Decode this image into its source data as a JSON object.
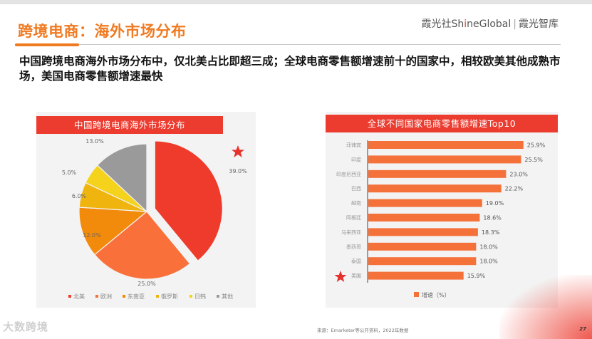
{
  "header": {
    "title": "跨境电商：海外市场分布",
    "brand_prefix": "霞光社",
    "brand_en_1": "Sh",
    "brand_en_i": "i",
    "brand_en_2": "neGlobal",
    "brand_sep": "|",
    "brand_suffix": "霞光智库"
  },
  "subtitle": "中国跨境电商海外市场分布中，仅北美占比即超三成；全球电商零售额增速前十的国家中，相较欧美其他成熟市场，美国电商零售额增速最快",
  "footer": {
    "source": "来源：Emarketer等公开资料，2022年数据",
    "page": "27",
    "watermark": "大数跨境"
  },
  "colors": {
    "accent": "#f07a21",
    "panel_header": "#ec3b2f",
    "bar": "#f4713a",
    "star": "#e8302a"
  },
  "chart_data": [
    {
      "type": "pie",
      "title": "中国跨境电商海外市场分布",
      "categories": [
        "北美",
        "欧洲",
        "东南亚",
        "俄罗斯",
        "日韩",
        "其他"
      ],
      "values": [
        39.0,
        25.0,
        12.0,
        6.0,
        5.0,
        13.0
      ],
      "labels": [
        "39.0%",
        "25.0%",
        "12.0%",
        "6.0%",
        "5.0%",
        "13.0%"
      ],
      "colors": [
        "#ef3b2c",
        "#f9703a",
        "#f28b0c",
        "#f0b40e",
        "#f5d21c",
        "#9a9a9a"
      ],
      "exploded": "北美",
      "annotation": "star",
      "legend_position": "bottom"
    },
    {
      "type": "bar",
      "orientation": "horizontal",
      "title": "全球不同国家电商零售额增速Top10",
      "categories": [
        "菲律宾",
        "印度",
        "印度尼西亚",
        "巴西",
        "越南",
        "阿根廷",
        "马来西亚",
        "墨西哥",
        "泰国",
        "美国"
      ],
      "series": [
        {
          "name": "增速（%）",
          "values": [
            25.9,
            25.5,
            23.0,
            22.2,
            19.0,
            18.6,
            18.3,
            18.0,
            18.0,
            15.9
          ]
        }
      ],
      "labels": [
        "25.9%",
        "25.5%",
        "23.0%",
        "22.2%",
        "19.0%",
        "18.6%",
        "18.3%",
        "18.0%",
        "18.0%",
        "15.9%"
      ],
      "highlight": "美国",
      "legend_position": "bottom",
      "grid": false
    }
  ]
}
